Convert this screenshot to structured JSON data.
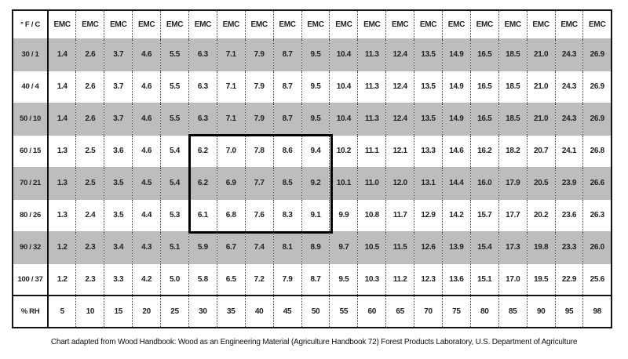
{
  "table": {
    "header": [
      "° F / C",
      "EMC",
      "EMC",
      "EMC",
      "EMC",
      "EMC",
      "EMC",
      "EMC",
      "EMC",
      "EMC",
      "EMC",
      "EMC",
      "EMC",
      "EMC",
      "EMC",
      "EMC",
      "EMC",
      "EMC",
      "EMC",
      "EMC",
      "EMC"
    ],
    "rows": [
      [
        "30 / 1",
        "1.4",
        "2.6",
        "3.7",
        "4.6",
        "5.5",
        "6.3",
        "7.1",
        "7.9",
        "8.7",
        "9.5",
        "10.4",
        "11.3",
        "12.4",
        "13.5",
        "14.9",
        "16.5",
        "18.5",
        "21.0",
        "24.3",
        "26.9"
      ],
      [
        "40 / 4",
        "1.4",
        "2.6",
        "3.7",
        "4.6",
        "5.5",
        "6.3",
        "7.1",
        "7.9",
        "8.7",
        "9.5",
        "10.4",
        "11.3",
        "12.4",
        "13.5",
        "14.9",
        "16.5",
        "18.5",
        "21.0",
        "24.3",
        "26.9"
      ],
      [
        "50 / 10",
        "1.4",
        "2.6",
        "3.7",
        "4.6",
        "5.5",
        "6.3",
        "7.1",
        "7.9",
        "8.7",
        "9.5",
        "10.4",
        "11.3",
        "12.4",
        "13.5",
        "14.9",
        "16.5",
        "18.5",
        "21.0",
        "24.3",
        "26.9"
      ],
      [
        "60 / 15",
        "1.3",
        "2.5",
        "3.6",
        "4.6",
        "5.4",
        "6.2",
        "7.0",
        "7.8",
        "8.6",
        "9.4",
        "10.2",
        "11.1",
        "12.1",
        "13.3",
        "14.6",
        "16.2",
        "18.2",
        "20.7",
        "24.1",
        "26.8"
      ],
      [
        "70 / 21",
        "1.3",
        "2.5",
        "3.5",
        "4.5",
        "5.4",
        "6.2",
        "6.9",
        "7.7",
        "8.5",
        "9.2",
        "10.1",
        "11.0",
        "12.0",
        "13.1",
        "14.4",
        "16.0",
        "17.9",
        "20.5",
        "23.9",
        "26.6"
      ],
      [
        "80 / 26",
        "1.3",
        "2.4",
        "3.5",
        "4.4",
        "5.3",
        "6.1",
        "6.8",
        "7.6",
        "8.3",
        "9.1",
        "9.9",
        "10.8",
        "11.7",
        "12.9",
        "14.2",
        "15.7",
        "17.7",
        "20.2",
        "23.6",
        "26.3"
      ],
      [
        "90 / 32",
        "1.2",
        "2.3",
        "3.4",
        "4.3",
        "5.1",
        "5.9",
        "6.7",
        "7.4",
        "8.1",
        "8.9",
        "9.7",
        "10.5",
        "11.5",
        "12.6",
        "13.9",
        "15.4",
        "17.3",
        "19.8",
        "23.3",
        "26.0"
      ],
      [
        "100 / 37",
        "1.2",
        "2.3",
        "3.3",
        "4.2",
        "5.0",
        "5.8",
        "6.5",
        "7.2",
        "7.9",
        "8.7",
        "9.5",
        "10.3",
        "11.2",
        "12.3",
        "13.6",
        "15.1",
        "17.0",
        "19.5",
        "22.9",
        "25.6"
      ],
      [
        "% RH",
        "5",
        "10",
        "15",
        "20",
        "25",
        "30",
        "35",
        "40",
        "45",
        "50",
        "55",
        "60",
        "65",
        "70",
        "75",
        "80",
        "85",
        "90",
        "95",
        "98"
      ]
    ]
  },
  "caption": "Chart adapted from Wood Handbook: Wood as an Engineering Material (Agriculture Handbook 72) Forest Products Laboratory, U.S. Department of Agriculture"
}
